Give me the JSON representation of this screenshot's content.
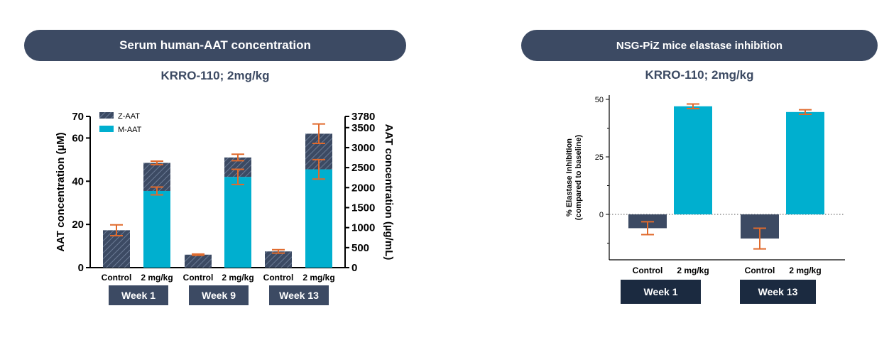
{
  "left_panel": {
    "banner": "Serum human-AAT concentration",
    "subtitle": "KRRO-110; 2mg/kg"
  },
  "right_panel": {
    "banner": "NSG-PiZ mice elastase inhibition",
    "subtitle": "KRRO-110; 2mg/kg"
  },
  "colors": {
    "navy": "#3c4a63",
    "cyan": "#00afcf",
    "error_bar": "#e06a2c",
    "week_box_left": "#3c4a63",
    "week_box_right": "#1b2a40"
  },
  "chart_data": [
    {
      "type": "bar",
      "stacked": true,
      "categories": [
        "Control",
        "2 mg/kg",
        "Control",
        "2 mg/kg",
        "Control",
        "2 mg/kg"
      ],
      "groups": [
        "Week 1",
        "Week 9",
        "Week 13"
      ],
      "ylabel": "AAT concentration (µM)",
      "ylim": [
        0,
        70
      ],
      "yticks": [
        0,
        20,
        40,
        60,
        70
      ],
      "y2label": "AAT concentration (µg/mL)",
      "y2lim": [
        0,
        3780
      ],
      "y2ticks": [
        0,
        500,
        1000,
        1500,
        2000,
        2500,
        3000,
        3500,
        3780
      ],
      "legend_position": "top-left",
      "series": [
        {
          "name": "M-AAT",
          "color": "#00afcf",
          "values": [
            0,
            35.5,
            0,
            42,
            0,
            45.5
          ],
          "error": [
            null,
            1.8,
            null,
            3.5,
            null,
            4.5
          ]
        },
        {
          "name": "Z-AAT",
          "color": "#3c4a63",
          "hatched": true,
          "values": [
            17.3,
            13,
            6,
            9,
            7.5,
            16.5
          ],
          "error": [
            2.5,
            0.8,
            0.3,
            1.5,
            0.8,
            4.5
          ]
        }
      ]
    },
    {
      "type": "bar",
      "categories": [
        "Control",
        "2 mg/kg",
        "Control",
        "2 mg/kg"
      ],
      "groups": [
        "Week 1",
        "Week 13"
      ],
      "ylabel": "% Elastase Inhibition (compared to baseline)",
      "ylim": [
        -20,
        50
      ],
      "yticks": [
        0,
        25,
        50
      ],
      "series": [
        {
          "values": [
            -6,
            47,
            -10.5,
            44.5
          ],
          "colors": [
            "#3c4a63",
            "#00afcf",
            "#3c4a63",
            "#00afcf"
          ],
          "error": [
            2.8,
            1.0,
            4.5,
            1.0
          ]
        }
      ]
    }
  ]
}
